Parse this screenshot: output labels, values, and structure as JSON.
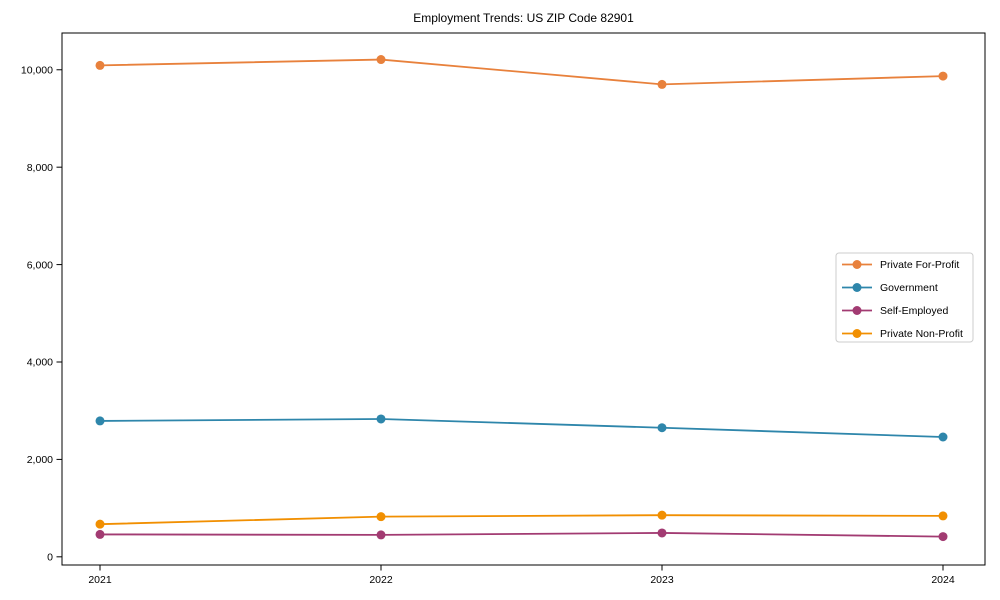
{
  "chart_data": {
    "type": "line",
    "title": "Employment Trends: US ZIP Code 82901",
    "x": [
      "2021",
      "2022",
      "2023",
      "2024"
    ],
    "series": [
      {
        "name": "Private For-Profit",
        "color": "#E8813C",
        "values": [
          10090,
          10210,
          9700,
          9870
        ]
      },
      {
        "name": "Government",
        "color": "#2E86AB",
        "values": [
          2790,
          2830,
          2650,
          2460
        ]
      },
      {
        "name": "Self-Employed",
        "color": "#A23B72",
        "values": [
          460,
          450,
          490,
          415
        ]
      },
      {
        "name": "Private Non-Profit",
        "color": "#F18F01",
        "values": [
          670,
          825,
          855,
          840
        ]
      }
    ],
    "xlabel": "",
    "ylabel": "",
    "ylim": [
      -168,
      10755
    ],
    "yticks": [
      {
        "v": 0,
        "label": "0"
      },
      {
        "v": 2000,
        "label": "2,000"
      },
      {
        "v": 4000,
        "label": "4,000"
      },
      {
        "v": 6000,
        "label": "6,000"
      },
      {
        "v": 8000,
        "label": "8,000"
      },
      {
        "v": 10000,
        "label": "10,000"
      }
    ],
    "grid": false,
    "legend_position": "right",
    "frame_color": "#000000",
    "legend_border_color": "#cccccc",
    "legend_bg_color": "#ffffff"
  }
}
